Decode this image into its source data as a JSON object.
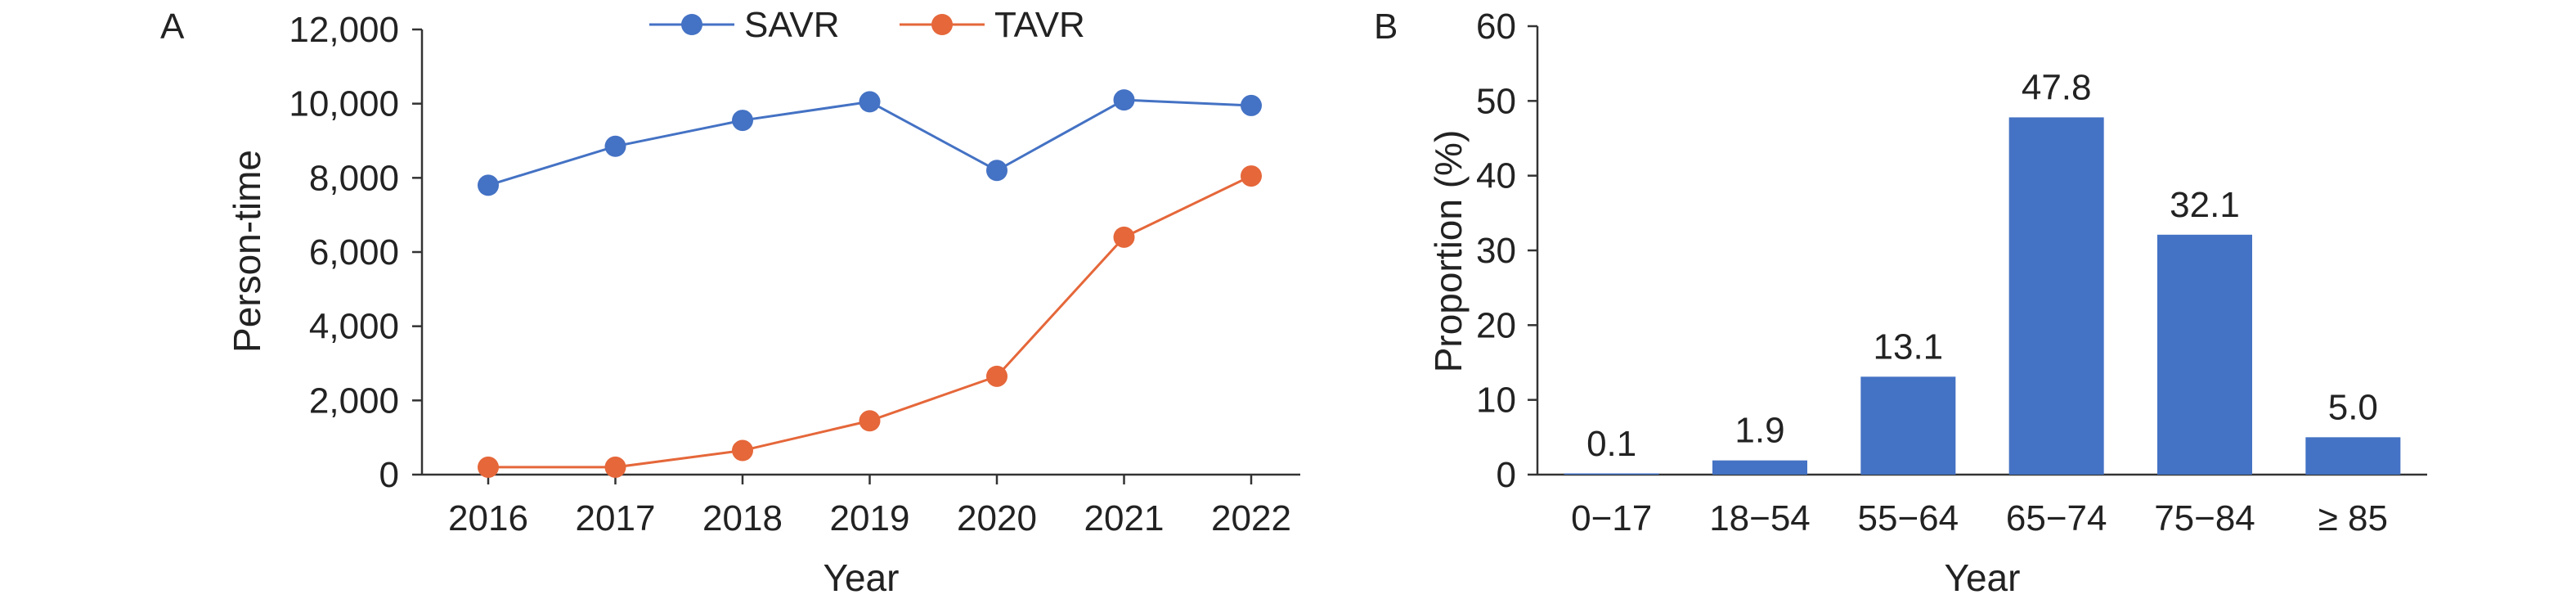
{
  "panels": {
    "a_label": "A",
    "b_label": "B"
  },
  "chart_data": [
    {
      "type": "line",
      "panel": "A",
      "title": "",
      "xlabel": "Year",
      "ylabel": "Person-time",
      "x": [
        "2016",
        "2017",
        "2018",
        "2019",
        "2020",
        "2021",
        "2022"
      ],
      "ylim": [
        0,
        12000
      ],
      "yticks": [
        0,
        2000,
        4000,
        6000,
        8000,
        10000,
        12000
      ],
      "ytick_labels": [
        "0",
        "2,000",
        "4,000",
        "6,000",
        "8,000",
        "10,000",
        "12,000"
      ],
      "legend": "top-center",
      "grid": false,
      "series": [
        {
          "name": "SAVR",
          "color": "#4472C4",
          "marker": "circle",
          "values": [
            7800,
            8850,
            9550,
            10050,
            8200,
            10100,
            9950
          ]
        },
        {
          "name": "TAVR",
          "color": "#E5673A",
          "marker": "circle",
          "values": [
            200,
            200,
            650,
            1450,
            2650,
            6400,
            8050
          ]
        }
      ]
    },
    {
      "type": "bar",
      "panel": "B",
      "title": "",
      "xlabel": "Year",
      "ylabel": "Proportion (%)",
      "categories": [
        "0−17",
        "18−54",
        "55−64",
        "65−74",
        "75−84",
        "≥ 85"
      ],
      "values": [
        0.1,
        1.9,
        13.1,
        47.8,
        32.1,
        5.0
      ],
      "data_labels": [
        "0.1",
        "1.9",
        "13.1",
        "47.8",
        "32.1",
        "5.0"
      ],
      "ylim": [
        0,
        60
      ],
      "yticks": [
        0,
        10,
        20,
        30,
        40,
        50,
        60
      ],
      "ytick_labels": [
        "0",
        "10",
        "20",
        "30",
        "40",
        "50",
        "60"
      ],
      "color": "#4472C4",
      "grid": false
    }
  ]
}
